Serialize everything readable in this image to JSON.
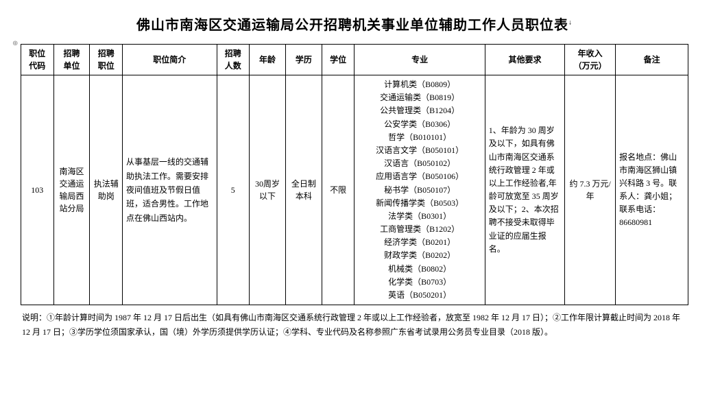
{
  "title": "佛山市南海区交通运输局公开招聘机关事业单位辅助工作人员职位表",
  "headers": {
    "code": "职位\n代码",
    "unit": "招聘\n单位",
    "position": "招聘\n职位",
    "desc": "职位简介",
    "count": "招聘\n人数",
    "age": "年龄",
    "edu": "学历",
    "degree": "学位",
    "major": "专业",
    "other": "其他要求",
    "salary": "年收入\n（万元）",
    "note": "备注"
  },
  "row": {
    "code": "103",
    "unit": "南海区交通运输局西站分局",
    "position": "执法辅助岗",
    "desc": "从事基层一线的交通辅助执法工作。需要安排夜间值班及节假日值班，适合男性。工作地点在佛山西站内。",
    "count": "5",
    "age": "30周岁以下",
    "edu": "全日制本科",
    "degree": "不限",
    "majors": [
      "计算机类（B0809）",
      "交通运输类（B0819）",
      "公共管理类（B1204）",
      "公安学类（B0306）",
      "哲学（B010101）",
      "汉语言文学（B050101）",
      "汉语言（B050102）",
      "应用语言学（B050106）",
      "秘书学（B050107）",
      "新闻传播学类（B0503）",
      "法学类（B0301）",
      "工商管理类（B1202）",
      "经济学类（B0201）",
      "财政学类（B0202）",
      "机械类（B0802）",
      "化学类（B0703）",
      "英语（B050201）"
    ],
    "other": "1、年龄为 30 周岁及以下，如具有佛山市南海区交通系统行政管理 2 年或以上工作经验者,年龄可放宽至 35 周岁及以下；2、本次招聘不接受未取得毕业证的应届生报名。",
    "salary": "约 7.3 万元/年",
    "note": "报名地点：佛山市南海区狮山镇兴科路 3 号。联系人：龚小姐；联系电话：86680981"
  },
  "explanation": "说明：①年龄计算时间为 1987 年 12 月 17 日后出生（如具有佛山市南海区交通系统行政管理 2 年或以上工作经验者，放宽至 1982 年 12 月 17 日）；②工作年限计算截止时间为 2018 年 12 月 17 日；③学历学位须国家承认，国（境）外学历须提供学历认证；④学科、专业代码及名称参照广东省考试录用公务员专业目录（2018 版）。"
}
